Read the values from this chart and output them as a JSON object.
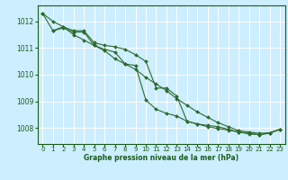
{
  "bg_color": "#cceeff",
  "grid_color": "#ffffff",
  "line_color": "#2d6a2d",
  "marker_color": "#2d6a2d",
  "xlabel": "Graphe pression niveau de la mer (hPa)",
  "xlabel_color": "#1a5c1a",
  "tick_color": "#1a5c1a",
  "ylim": [
    1007.4,
    1012.6
  ],
  "xlim": [
    -0.5,
    23.5
  ],
  "yticks": [
    1008,
    1009,
    1010,
    1011,
    1012
  ],
  "xticks": [
    0,
    1,
    2,
    3,
    4,
    5,
    6,
    7,
    8,
    9,
    10,
    11,
    12,
    13,
    14,
    15,
    16,
    17,
    18,
    19,
    20,
    21,
    22,
    23
  ],
  "series": [
    {
      "x": [
        0,
        1,
        2,
        3,
        4,
        5,
        6,
        7,
        8,
        9,
        10,
        11,
        12,
        13,
        14,
        15,
        16,
        17,
        18,
        19,
        20,
        21,
        22,
        23
      ],
      "y": [
        1012.3,
        1012.0,
        1011.8,
        1011.5,
        1011.3,
        1011.1,
        1010.9,
        1010.6,
        1010.4,
        1010.2,
        1009.9,
        1009.65,
        1009.4,
        1009.1,
        1008.85,
        1008.6,
        1008.4,
        1008.2,
        1008.05,
        1007.9,
        1007.85,
        1007.8,
        1007.82,
        1007.95
      ]
    },
    {
      "x": [
        0,
        1,
        2,
        3,
        4,
        5,
        6,
        7,
        8,
        9,
        10,
        11,
        12,
        13,
        14,
        15,
        16,
        17,
        18,
        19,
        20,
        21,
        22,
        23
      ],
      "y": [
        1012.3,
        1011.65,
        1011.8,
        1011.65,
        1011.65,
        1011.2,
        1011.1,
        1011.05,
        1010.95,
        1010.75,
        1010.5,
        1009.5,
        1009.5,
        1009.2,
        1008.25,
        1008.15,
        1008.1,
        1008.05,
        1007.95,
        1007.85,
        1007.78,
        1007.75,
        1007.82,
        1007.95
      ]
    },
    {
      "x": [
        1,
        2,
        3,
        4,
        5,
        6,
        7,
        8,
        9,
        10,
        11,
        12,
        13,
        14,
        15,
        16,
        17,
        18,
        19,
        20,
        21,
        22,
        23
      ],
      "y": [
        1011.65,
        1011.75,
        1011.6,
        1011.6,
        1011.1,
        1010.95,
        1010.85,
        1010.4,
        1010.35,
        1009.05,
        1008.7,
        1008.55,
        1008.45,
        1008.25,
        1008.15,
        1008.05,
        1007.98,
        1007.92,
        1007.85,
        1007.8,
        1007.75,
        1007.8,
        1007.95
      ]
    }
  ]
}
